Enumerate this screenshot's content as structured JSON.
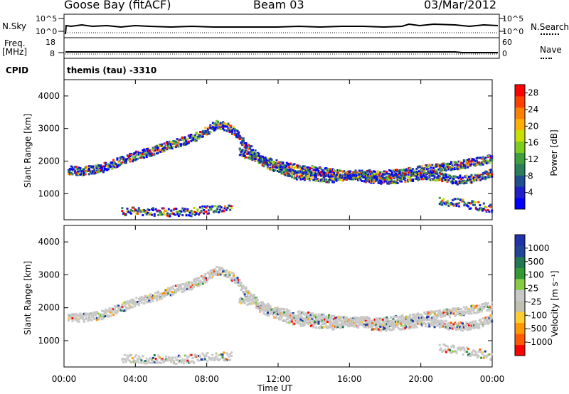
{
  "header": {
    "station": "Goose Bay (fitACF)",
    "beam": "Beam 03",
    "date": "03/Mar/2012"
  },
  "panels": {
    "nsky": {
      "label": "N.Sky",
      "tick_top": "10^5",
      "tick_bottom": "10^0"
    },
    "nsearch": {
      "label": "N.Search",
      "tick_top": "10^5",
      "tick_bottom": "10^0"
    },
    "freq": {
      "label_line1": "Freq.",
      "label_line2": "[MHz]",
      "tick_top": "18",
      "tick_bottom": "8"
    },
    "nave": {
      "label": "Nave",
      "tick_top": "60",
      "tick_bottom": "0"
    },
    "cpid": {
      "label": "CPID",
      "text": "themis (tau) -3310"
    }
  },
  "colors": {
    "trace": "#000000",
    "power_scale": [
      "#0000ff",
      "#2020c8",
      "#1f4f8f",
      "#2a7f5a",
      "#3f9f3f",
      "#7fcc1f",
      "#c8e000",
      "#ffb000",
      "#ff7f00",
      "#ff4000",
      "#ff0000"
    ],
    "velocity_scale": [
      "#ff0000",
      "#ff5a00",
      "#ff9900",
      "#ffcc33",
      "#c0c0b0",
      "#c8c8c8",
      "#88cc44",
      "#339933",
      "#227755",
      "#224499",
      "#2233aa"
    ]
  },
  "chart_data": [
    {
      "type": "heatmap",
      "name": "power",
      "ylabel": "Slant Range [km]",
      "ylim": [
        200,
        4500
      ],
      "yticks": [
        1000,
        2000,
        3000,
        4000
      ],
      "xlim": [
        0,
        24
      ],
      "xtick_labels": [
        "00:00",
        "04:00",
        "08:00",
        "12:00",
        "16:00",
        "20:00",
        "00:00"
      ],
      "colorbar_label": "Power [dB]",
      "colorbar_ticks": [
        "4",
        "8",
        "12",
        "16",
        "20",
        "24",
        "28"
      ],
      "colorbar_range": [
        0,
        30
      ],
      "traces": [
        {
          "x": [
            0.2,
            1,
            2,
            3,
            4,
            5,
            6,
            7,
            7.8,
            8.5,
            9,
            9.6,
            10,
            10.6,
            11,
            12,
            13,
            14,
            15,
            16,
            17,
            18,
            19,
            20,
            21,
            22,
            23,
            23.5,
            24
          ],
          "y": [
            1750,
            1720,
            1800,
            2000,
            2200,
            2350,
            2550,
            2700,
            2900,
            3150,
            3100,
            2900,
            2600,
            2300,
            2000,
            1800,
            1600,
            1550,
            1500,
            1600,
            1500,
            1450,
            1500,
            1600,
            1550,
            1450,
            1500,
            1600,
            1700
          ]
        },
        {
          "x": [
            9.8,
            10.5,
            11.3,
            12,
            13,
            14.5,
            16,
            17,
            17.6,
            19.2,
            20.8,
            22,
            23,
            24
          ],
          "y": [
            2300,
            2200,
            2050,
            1900,
            1800,
            1700,
            1600,
            1650,
            1580,
            1700,
            1820,
            1900,
            2000,
            2100
          ]
        },
        {
          "x": [
            3.2,
            4.5,
            5.6,
            6.8,
            7.5,
            8.4,
            9.4
          ],
          "y": [
            500,
            460,
            470,
            450,
            500,
            560,
            540
          ]
        },
        {
          "x": [
            21,
            21.8,
            22.6,
            23.4,
            24
          ],
          "y": [
            800,
            760,
            700,
            620,
            560
          ]
        }
      ]
    },
    {
      "type": "heatmap",
      "name": "velocity",
      "ylabel": "Slant Range [km]",
      "ylim": [
        200,
        4500
      ],
      "yticks": [
        1000,
        2000,
        3000,
        4000
      ],
      "xlim": [
        0,
        24
      ],
      "xtick_labels": [
        "00:00",
        "04:00",
        "08:00",
        "12:00",
        "16:00",
        "20:00",
        "00:00"
      ],
      "xlabel": "Time UT",
      "colorbar_label": "Velocity [m s⁻¹]",
      "colorbar_ticks": [
        "1000",
        "500",
        "100",
        "25",
        "-25",
        "-100",
        "-500",
        "-1000"
      ],
      "traces": [
        {
          "x": [
            0.2,
            1,
            2,
            3,
            4,
            5,
            6,
            7,
            7.8,
            8.5,
            9,
            9.6,
            10,
            10.6,
            11,
            12,
            13,
            14,
            15,
            16,
            17,
            18,
            19,
            20,
            21,
            22,
            23,
            23.5,
            24
          ],
          "y": [
            1750,
            1720,
            1800,
            2000,
            2200,
            2350,
            2550,
            2700,
            2900,
            3150,
            3100,
            2900,
            2600,
            2300,
            2000,
            1800,
            1600,
            1550,
            1500,
            1600,
            1500,
            1450,
            1500,
            1600,
            1550,
            1450,
            1500,
            1600,
            1700
          ]
        },
        {
          "x": [
            9.8,
            10.5,
            11.3,
            12,
            13,
            14.5,
            16,
            17,
            17.6,
            19.2,
            20.8,
            22,
            23,
            24
          ],
          "y": [
            2300,
            2200,
            2050,
            1900,
            1800,
            1700,
            1600,
            1650,
            1580,
            1700,
            1820,
            1900,
            2000,
            2100
          ]
        },
        {
          "x": [
            3.2,
            4.5,
            5.6,
            6.8,
            7.5,
            8.4,
            9.4
          ],
          "y": [
            500,
            460,
            470,
            450,
            500,
            560,
            540
          ]
        },
        {
          "x": [
            21,
            21.8,
            22.6,
            23.4,
            24
          ],
          "y": [
            800,
            760,
            700,
            620,
            560
          ]
        }
      ]
    }
  ]
}
